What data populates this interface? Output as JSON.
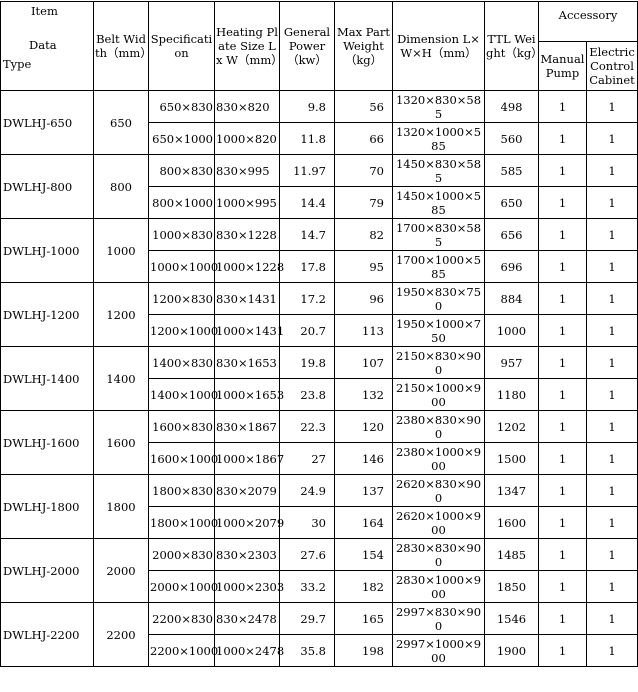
{
  "header": {
    "item": "Item",
    "data": "Data",
    "type": "Type",
    "belt_width": "Belt Width（mm）",
    "specification": "Specification",
    "heating_plate": "Heating Plate Size L  x W（mm）",
    "general_power": "General Power（kw）",
    "max_part_weight": "Max Part Weight（kg）",
    "dimension": "Dimension L×W×H（mm）",
    "ttl_weight": "TTL Weight（kg）",
    "accessory": "Accessory",
    "manual_pump": "Manual Pump",
    "electric_cabinet": "Electric Control Cabinet"
  },
  "models": [
    {
      "type": "DWLHJ-650",
      "belt": "650",
      "rows": [
        {
          "spec": "650×830",
          "plate": "830×820",
          "power": "9.8",
          "max_weight": "56",
          "dimension": "1320×830×585",
          "ttl": "498",
          "pump": "1",
          "cabinet": "1"
        },
        {
          "spec": "650×1000",
          "plate": "1000×820",
          "power": "11.8",
          "max_weight": "66",
          "dimension": "1320×1000×585",
          "ttl": "560",
          "pump": "1",
          "cabinet": "1"
        }
      ]
    },
    {
      "type": "DWLHJ-800",
      "belt": "800",
      "rows": [
        {
          "spec": "800×830",
          "plate": "830×995",
          "power": "11.97",
          "max_weight": "70",
          "dimension": "1450×830×585",
          "ttl": "585",
          "pump": "1",
          "cabinet": "1"
        },
        {
          "spec": "800×1000",
          "plate": "1000×995",
          "power": "14.4",
          "max_weight": "79",
          "dimension": "1450×1000×585",
          "ttl": "650",
          "pump": "1",
          "cabinet": "1"
        }
      ]
    },
    {
      "type": "DWLHJ-1000",
      "belt": "1000",
      "rows": [
        {
          "spec": "1000×830",
          "plate": "830×1228",
          "power": "14.7",
          "max_weight": "82",
          "dimension": "1700×830×585",
          "ttl": "656",
          "pump": "1",
          "cabinet": "1"
        },
        {
          "spec": "1000×1000",
          "plate": "1000×1228",
          "power": "17.8",
          "max_weight": "95",
          "dimension": "1700×1000×585",
          "ttl": "696",
          "pump": "1",
          "cabinet": "1"
        }
      ]
    },
    {
      "type": "DWLHJ-1200",
      "belt": "1200",
      "rows": [
        {
          "spec": "1200×830",
          "plate": "830×1431",
          "power": "17.2",
          "max_weight": "96",
          "dimension": "1950×830×750",
          "ttl": "884",
          "pump": "1",
          "cabinet": "1"
        },
        {
          "spec": "1200×1000",
          "plate": "1000×1431",
          "power": "20.7",
          "max_weight": "113",
          "dimension": "1950×1000×750",
          "ttl": "1000",
          "pump": "1",
          "cabinet": "1"
        }
      ]
    },
    {
      "type": "DWLHJ-1400",
      "belt": "1400",
      "rows": [
        {
          "spec": "1400×830",
          "plate": "830×1653",
          "power": "19.8",
          "max_weight": "107",
          "dimension": "2150×830×900",
          "ttl": "957",
          "pump": "1",
          "cabinet": "1"
        },
        {
          "spec": "1400×1000",
          "plate": "1000×1653",
          "power": "23.8",
          "max_weight": "132",
          "dimension": "2150×1000×900",
          "ttl": "1180",
          "pump": "1",
          "cabinet": "1"
        }
      ]
    },
    {
      "type": "DWLHJ-1600",
      "belt": "1600",
      "rows": [
        {
          "spec": "1600×830",
          "plate": "830×1867",
          "power": "22.3",
          "max_weight": "120",
          "dimension": "2380×830×900",
          "ttl": "1202",
          "pump": "1",
          "cabinet": "1"
        },
        {
          "spec": "1600×1000",
          "plate": "1000×1867",
          "power": "27",
          "max_weight": "146",
          "dimension": "2380×1000×900",
          "ttl": "1500",
          "pump": "1",
          "cabinet": "1"
        }
      ]
    },
    {
      "type": "DWLHJ-1800",
      "belt": "1800",
      "rows": [
        {
          "spec": "1800×830",
          "plate": "830×2079",
          "power": "24.9",
          "max_weight": "137",
          "dimension": "2620×830×900",
          "ttl": "1347",
          "pump": "1",
          "cabinet": "1"
        },
        {
          "spec": "1800×1000",
          "plate": "1000×2079",
          "power": "30",
          "max_weight": "164",
          "dimension": "2620×1000×900",
          "ttl": "1600",
          "pump": "1",
          "cabinet": "1"
        }
      ]
    },
    {
      "type": "DWLHJ-2000",
      "belt": "2000",
      "rows": [
        {
          "spec": "2000×830",
          "plate": "830×2303",
          "power": "27.6",
          "max_weight": "154",
          "dimension": "2830×830×900",
          "ttl": "1485",
          "pump": "1",
          "cabinet": "1"
        },
        {
          "spec": "2000×1000",
          "plate": "1000×2303",
          "power": "33.2",
          "max_weight": "182",
          "dimension": "2830×1000×900",
          "ttl": "1850",
          "pump": "1",
          "cabinet": "1"
        }
      ]
    },
    {
      "type": "DWLHJ-2200",
      "belt": "2200",
      "rows": [
        {
          "spec": "2200×830",
          "plate": "830×2478",
          "power": "29.7",
          "max_weight": "165",
          "dimension": "2997×830×900",
          "ttl": "1546",
          "pump": "1",
          "cabinet": "1"
        },
        {
          "spec": "2200×1000",
          "plate": "1000×2478",
          "power": "35.8",
          "max_weight": "198",
          "dimension": "2997×1000×900",
          "ttl": "1900",
          "pump": "1",
          "cabinet": "1"
        }
      ]
    }
  ]
}
